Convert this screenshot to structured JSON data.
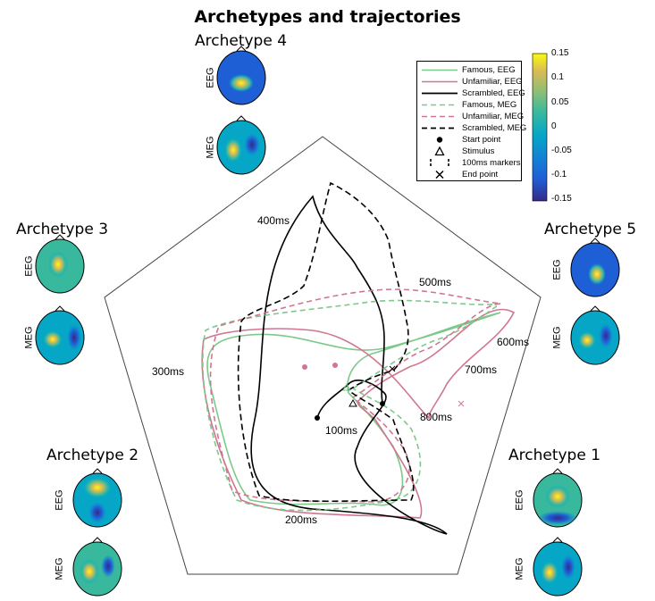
{
  "title": "Archetypes and trajectories",
  "archetypes": [
    {
      "title": "Archetype 4",
      "eeg": "EEG",
      "meg": "MEG"
    },
    {
      "title": "Archetype 3",
      "eeg": "EEG",
      "meg": "MEG"
    },
    {
      "title": "Archetype 5",
      "eeg": "EEG",
      "meg": "MEG"
    },
    {
      "title": "Archetype 2",
      "eeg": "EEG",
      "meg": "MEG"
    },
    {
      "title": "Archetype 1",
      "eeg": "EEG",
      "meg": "MEG"
    }
  ],
  "time_labels": [
    "400ms",
    "500ms",
    "600ms",
    "700ms",
    "800ms",
    "300ms",
    "100ms",
    "200ms"
  ],
  "legend": [
    {
      "label": "Famous, EEG",
      "style": "solid",
      "color": "#7cc98a"
    },
    {
      "label": "Unfamiliar, EEG",
      "style": "solid",
      "color": "#d0768f"
    },
    {
      "label": "Scrambled, EEG",
      "style": "solid",
      "color": "#000000"
    },
    {
      "label": "Famous, MEG",
      "style": "dashed",
      "color": "#7cc98a"
    },
    {
      "label": "Unfamiliar, MEG",
      "style": "dashed",
      "color": "#d0768f"
    },
    {
      "label": "Scrambled, MEG",
      "style": "dashed",
      "color": "#000000"
    },
    {
      "label": "Start point",
      "style": "dot",
      "color": "#000000"
    },
    {
      "label": "Stimulus",
      "style": "triangle",
      "color": "#000000"
    },
    {
      "label": "100ms markers",
      "style": "ticks",
      "color": "#000000"
    },
    {
      "label": "End point",
      "style": "cross",
      "color": "#000000"
    }
  ],
  "colorbar": {
    "ticks": [
      "0.15",
      "0.1",
      "0.05",
      "0",
      "-0.05",
      "-0.1",
      "-0.15"
    ],
    "colormap": "parula"
  },
  "colors": {
    "famous": "#7cc98a",
    "unfamiliar": "#d0768f",
    "scrambled": "#000000"
  }
}
